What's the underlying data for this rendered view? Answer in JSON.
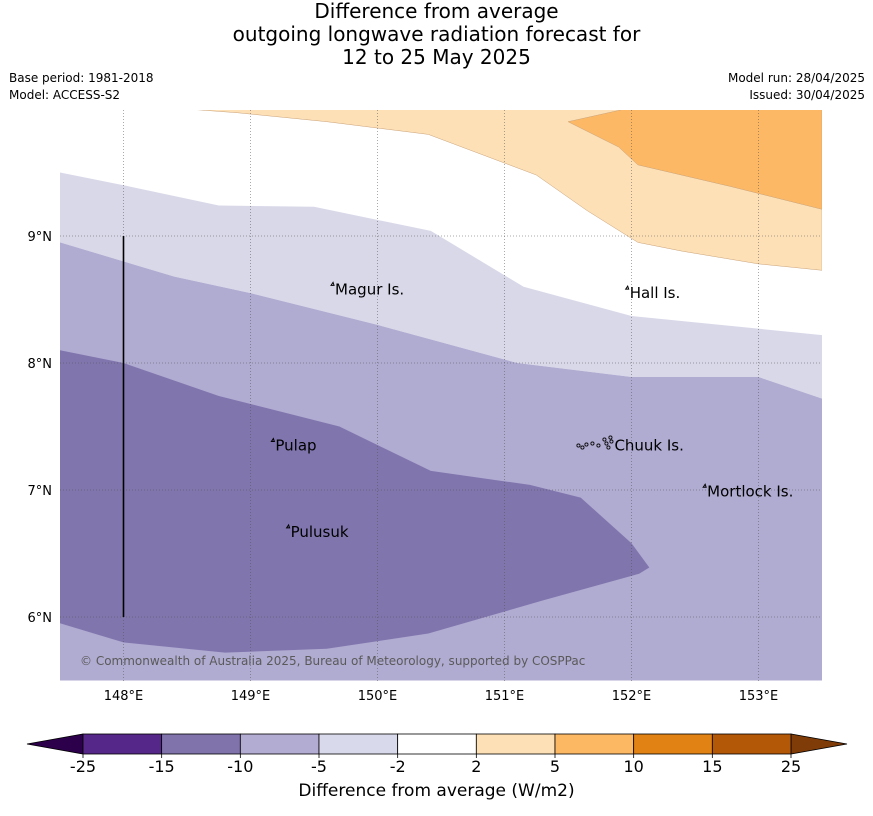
{
  "title": {
    "line1": "Difference from average",
    "line2": "outgoing longwave radiation forecast for",
    "line3": "12 to 25 May 2025"
  },
  "meta": {
    "base_period": "Base period: 1981-2018",
    "model": "Model: ACCESS-S2",
    "model_run": "Model run: 28/04/2025",
    "issued": "Issued: 30/04/2025"
  },
  "map": {
    "lon_range": [
      147.5,
      153.5
    ],
    "lat_range": [
      5.5,
      10.0
    ],
    "lon_ticks": [
      {
        "value": 148,
        "label": "148°E"
      },
      {
        "value": 149,
        "label": "149°E"
      },
      {
        "value": 150,
        "label": "150°E"
      },
      {
        "value": 151,
        "label": "151°E"
      },
      {
        "value": 152,
        "label": "152°E"
      },
      {
        "value": 153,
        "label": "153°E"
      }
    ],
    "lat_ticks": [
      {
        "value": 9,
        "label": "9°N"
      },
      {
        "value": 8,
        "label": "8°N"
      },
      {
        "value": 7,
        "label": "7°N"
      },
      {
        "value": 6,
        "label": "6°N"
      }
    ],
    "grid": "dotted",
    "places": [
      {
        "name": "Magur Is.",
        "lon": 149.65,
        "lat": 8.58
      },
      {
        "name": "Hall Is.",
        "lon": 151.97,
        "lat": 8.55
      },
      {
        "name": "Pulap",
        "lon": 149.18,
        "lat": 7.35
      },
      {
        "name": "Chuuk Is.",
        "lon": 151.85,
        "lat": 7.35
      },
      {
        "name": "Mortlock Is.",
        "lon": 152.58,
        "lat": 6.99
      },
      {
        "name": "Pulusuk",
        "lon": 149.3,
        "lat": 6.67
      }
    ],
    "boundary_line": {
      "lon": 148.0,
      "lat_from": 6.0,
      "lat_to": 9.0
    },
    "copyright": "© Commonwealth of Australia 2025, Bureau of Meteorology, supported by COSPPac",
    "regions": [
      {
        "category": "-2 to -5",
        "color": "#d8d8e9",
        "polygon": [
          [
            147.5,
            9.5
          ],
          [
            148,
            9.4
          ],
          [
            148.75,
            9.24
          ],
          [
            149.5,
            9.23
          ],
          [
            150.42,
            9.04
          ],
          [
            151.15,
            8.6
          ],
          [
            152,
            8.37
          ],
          [
            153.5,
            8.22
          ],
          [
            153.5,
            7.72
          ],
          [
            153,
            7.89
          ],
          [
            152,
            7.89
          ],
          [
            151.1,
            8.0
          ],
          [
            150,
            8.3
          ],
          [
            149,
            8.55
          ],
          [
            148.4,
            8.68
          ],
          [
            147.5,
            8.95
          ]
        ]
      },
      {
        "category": "-5 to -10",
        "color": "#b0abd1",
        "polygon": [
          [
            147.5,
            8.95
          ],
          [
            148.4,
            8.68
          ],
          [
            149,
            8.55
          ],
          [
            150,
            8.3
          ],
          [
            151.1,
            8.0
          ],
          [
            152,
            7.89
          ],
          [
            153,
            7.89
          ],
          [
            153.5,
            7.72
          ],
          [
            153.5,
            5.5
          ],
          [
            147.5,
            5.5
          ]
        ]
      },
      {
        "category": "-10 to -15",
        "color": "#8075ad",
        "polygon": [
          [
            147.5,
            8.1
          ],
          [
            148,
            8.0
          ],
          [
            148.75,
            7.74
          ],
          [
            149.7,
            7.5
          ],
          [
            150.42,
            7.15
          ],
          [
            151.2,
            7.04
          ],
          [
            151.6,
            6.94
          ],
          [
            152,
            6.58
          ],
          [
            152.14,
            6.39
          ],
          [
            152.06,
            6.34
          ],
          [
            151.3,
            6.13
          ],
          [
            150.4,
            5.87
          ],
          [
            149.6,
            5.75
          ],
          [
            148.8,
            5.72
          ],
          [
            148,
            5.8
          ],
          [
            147.5,
            5.95
          ]
        ]
      },
      {
        "category": "2 to 5",
        "color": "#fde0b6",
        "polygon": [
          [
            148.5,
            10.0
          ],
          [
            153.5,
            10.0
          ],
          [
            153.5,
            8.73
          ],
          [
            153,
            8.78
          ],
          [
            152.4,
            8.88
          ],
          [
            152.05,
            8.95
          ],
          [
            151.65,
            9.2
          ],
          [
            151.25,
            9.48
          ],
          [
            150.4,
            9.8
          ],
          [
            149.6,
            9.9
          ],
          [
            148.9,
            9.97
          ]
        ]
      },
      {
        "category": "5 to 10",
        "color": "#fdb865",
        "polygon": [
          [
            151.95,
            10.0
          ],
          [
            153.5,
            10.0
          ],
          [
            153.5,
            9.21
          ],
          [
            152.78,
            9.39
          ],
          [
            152.05,
            9.56
          ],
          [
            151.9,
            9.7
          ],
          [
            151.5,
            9.9
          ]
        ]
      }
    ]
  },
  "colorbar": {
    "ticks": [
      "-25",
      "-15",
      "-10",
      "-5",
      "-2",
      "2",
      "5",
      "10",
      "15",
      "25"
    ],
    "colors": [
      "#542788",
      "#8073ac",
      "#b2abd2",
      "#d8daeb",
      "#ffffff",
      "#fee0b6",
      "#fdb863",
      "#e08214",
      "#b35806"
    ],
    "extend_low_color": "#2d004b",
    "extend_high_color": "#7f3b08",
    "label": "Difference from average (W/m2)"
  }
}
